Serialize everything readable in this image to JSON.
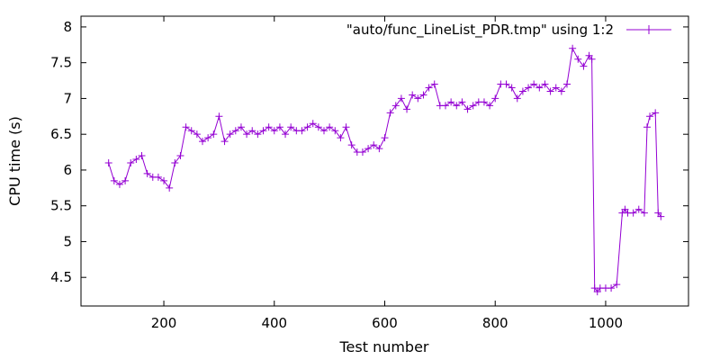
{
  "chart_data": {
    "type": "line",
    "xlabel": "Test number",
    "ylabel": "CPU time (s)",
    "xlim": [
      50,
      1150
    ],
    "ylim": [
      4.1,
      8.15
    ],
    "xticks": [
      200,
      400,
      600,
      800,
      1000
    ],
    "yticks": [
      4.5,
      5,
      5.5,
      6,
      6.5,
      7,
      7.5,
      8
    ],
    "xtick_labels": [
      "200",
      "400",
      "600",
      "800",
      "1000"
    ],
    "ytick_labels": [
      "4.5",
      "5",
      "5.5",
      "6",
      "6.5",
      "7",
      "7.5",
      "8"
    ],
    "grid": false,
    "legend_position": "top-right",
    "color": "#9400d3",
    "series": [
      {
        "name": "\"auto/func_LineList_PDR.tmp\" using 1:2",
        "x": [
          100,
          110,
          120,
          130,
          140,
          150,
          160,
          170,
          180,
          190,
          200,
          210,
          220,
          230,
          240,
          250,
          260,
          270,
          280,
          290,
          300,
          310,
          320,
          330,
          340,
          350,
          360,
          370,
          380,
          390,
          400,
          410,
          420,
          430,
          440,
          450,
          460,
          470,
          480,
          490,
          500,
          510,
          520,
          530,
          540,
          550,
          560,
          570,
          580,
          590,
          600,
          610,
          620,
          630,
          640,
          650,
          660,
          670,
          680,
          690,
          700,
          710,
          720,
          730,
          740,
          750,
          760,
          770,
          780,
          790,
          800,
          810,
          820,
          830,
          840,
          850,
          860,
          870,
          880,
          890,
          900,
          910,
          920,
          930,
          940,
          950,
          960,
          970,
          975,
          980,
          985,
          990,
          1000,
          1010,
          1020,
          1030,
          1035,
          1040,
          1050,
          1060,
          1070,
          1075,
          1080,
          1090,
          1095,
          1100
        ],
        "y": [
          6.1,
          5.85,
          5.8,
          5.85,
          6.1,
          6.15,
          6.2,
          5.95,
          5.9,
          5.9,
          5.85,
          5.75,
          6.1,
          6.2,
          6.6,
          6.55,
          6.5,
          6.4,
          6.45,
          6.5,
          6.75,
          6.4,
          6.5,
          6.55,
          6.6,
          6.5,
          6.55,
          6.5,
          6.55,
          6.6,
          6.55,
          6.6,
          6.5,
          6.6,
          6.55,
          6.55,
          6.6,
          6.65,
          6.6,
          6.55,
          6.6,
          6.55,
          6.45,
          6.6,
          6.35,
          6.25,
          6.25,
          6.3,
          6.35,
          6.3,
          6.45,
          6.8,
          6.9,
          7.0,
          6.85,
          7.05,
          7.0,
          7.05,
          7.15,
          7.2,
          6.9,
          6.9,
          6.95,
          6.9,
          6.95,
          6.85,
          6.9,
          6.95,
          6.95,
          6.9,
          7.0,
          7.2,
          7.2,
          7.15,
          7.0,
          7.1,
          7.15,
          7.2,
          7.15,
          7.2,
          7.1,
          7.15,
          7.1,
          7.2,
          7.7,
          7.55,
          7.45,
          7.6,
          7.55,
          4.35,
          4.3,
          4.35,
          4.35,
          4.35,
          4.4,
          5.4,
          5.45,
          5.4,
          5.4,
          5.45,
          5.4,
          6.6,
          6.75,
          6.8,
          5.4,
          5.35
        ]
      }
    ]
  }
}
